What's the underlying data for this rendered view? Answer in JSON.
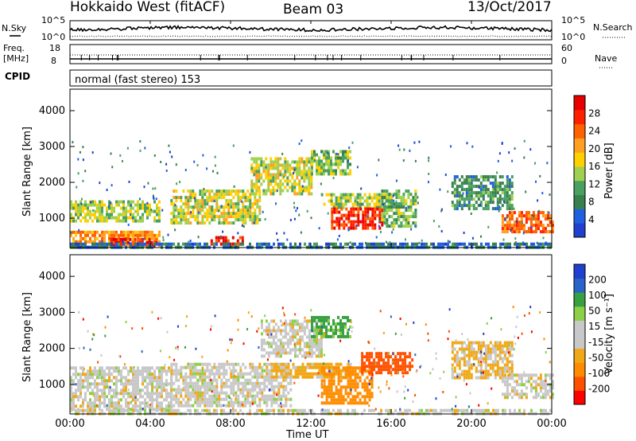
{
  "header": {
    "station": "Hokkaido West (fitACF)",
    "beam": "Beam 03",
    "date": "13/Oct/2017"
  },
  "top_panels": {
    "nsky_label": "N.Sky",
    "nsky_ticks": [
      "10^5",
      "10^0"
    ],
    "nsearch_label": "N.Search",
    "nsearch_ticks": [
      "10^5",
      "10^0"
    ],
    "freq_label": "Freq.",
    "freq_unit": "[MHz]",
    "freq_ticks": [
      "18",
      "8"
    ],
    "nave_label": "Nave",
    "nave_ticks": [
      "60",
      "0"
    ],
    "cpid_label": "CPID",
    "cpid_value": "normal (fast stereo) 153"
  },
  "colors": {
    "power": [
      "#2040d0",
      "#2060e0",
      "#3a7f50",
      "#49a060",
      "#a0d050",
      "#ffd000",
      "#ffa020",
      "#ff6000",
      "#ff2000",
      "#e80000"
    ],
    "velocity": [
      "#ff0000",
      "#ff5000",
      "#ff8c00",
      "#f0a818",
      "#c8c8c8",
      "#c8c8c8",
      "#8cd048",
      "#38a040",
      "#2a64c8",
      "#2040d0"
    ],
    "ground": "#a0a0a0"
  },
  "chart_data": [
    {
      "type": "heatmap",
      "panel": "power",
      "ylabel": "Slant Range [km]",
      "yticks": [
        "1000",
        "2000",
        "3000",
        "4000"
      ],
      "ylim": [
        180,
        4600
      ],
      "xlim": [
        0,
        24
      ],
      "colorbar_label": "Power [dB]",
      "colorbar_ticks": [
        "4",
        "8",
        "12",
        "16",
        "20",
        "24",
        "28"
      ],
      "colorbar_range": [
        0,
        30
      ],
      "bands": [
        {
          "t0": 0.0,
          "t1": 4.5,
          "r0": 900,
          "r1": 1500,
          "level": 14
        },
        {
          "t0": 0.0,
          "t1": 4.5,
          "r0": 250,
          "r1": 650,
          "level": 20
        },
        {
          "t0": 2.0,
          "t1": 4.3,
          "r0": 250,
          "r1": 450,
          "level": 27
        },
        {
          "t0": 5.0,
          "t1": 9.5,
          "r0": 900,
          "r1": 1800,
          "level": 15
        },
        {
          "t0": 7.0,
          "t1": 8.6,
          "r0": 250,
          "r1": 500,
          "level": 27
        },
        {
          "t0": 9.0,
          "t1": 12.0,
          "r0": 1700,
          "r1": 2700,
          "level": 15
        },
        {
          "t0": 12.0,
          "t1": 14.0,
          "r0": 2200,
          "r1": 2900,
          "level": 12
        },
        {
          "t0": 12.5,
          "t1": 16.0,
          "r0": 1300,
          "r1": 1700,
          "level": 14
        },
        {
          "t0": 13.0,
          "t1": 15.5,
          "r0": 700,
          "r1": 1300,
          "level": 26
        },
        {
          "t0": 15.5,
          "t1": 17.2,
          "r0": 800,
          "r1": 1800,
          "level": 12
        },
        {
          "t0": 19.0,
          "t1": 22.0,
          "r0": 1300,
          "r1": 2200,
          "level": 9
        },
        {
          "t0": 21.5,
          "t1": 24.0,
          "r0": 600,
          "r1": 1200,
          "level": 22
        },
        {
          "t0": 0.0,
          "t1": 24.0,
          "r0": 200,
          "r1": 320,
          "level": 6
        }
      ]
    },
    {
      "type": "heatmap",
      "panel": "velocity",
      "ylabel": "Slant Range [km]",
      "yticks": [
        "1000",
        "2000",
        "3000",
        "4000"
      ],
      "ylim": [
        180,
        4600
      ],
      "xlim": [
        0,
        24
      ],
      "xlabel": "Time UT",
      "xticks": [
        "00:00",
        "04:00",
        "08:00",
        "12:00",
        "16:00",
        "20:00",
        "00:00"
      ],
      "colorbar_label": "Velocity [m s⁻¹]",
      "colorbar_ticks": [
        "-200",
        "-100",
        "-50",
        "-15",
        "15",
        "50",
        "100",
        "200"
      ],
      "colorbar_range": [
        -250,
        250
      ],
      "bands": [
        {
          "t0": 0.0,
          "t1": 5.0,
          "r0": 300,
          "r1": 1500,
          "vel": 0
        },
        {
          "t0": 5.0,
          "t1": 11.0,
          "r0": 400,
          "r1": 1600,
          "vel": 0
        },
        {
          "t0": 9.5,
          "t1": 12.5,
          "r0": 1800,
          "r1": 2800,
          "vel": 0
        },
        {
          "t0": 10.0,
          "t1": 14.0,
          "r0": 1200,
          "r1": 1600,
          "vel": -30
        },
        {
          "t0": 12.5,
          "t1": 15.0,
          "r0": 500,
          "r1": 1500,
          "vel": -70
        },
        {
          "t0": 14.5,
          "t1": 17.0,
          "r0": 1300,
          "r1": 1900,
          "vel": -150
        },
        {
          "t0": 12.0,
          "t1": 14.0,
          "r0": 2300,
          "r1": 2900,
          "vel": 60
        },
        {
          "t0": 19.0,
          "t1": 22.0,
          "r0": 1200,
          "r1": 2200,
          "vel": -20
        },
        {
          "t0": 21.5,
          "t1": 24.0,
          "r0": 600,
          "r1": 1300,
          "vel": 0
        },
        {
          "t0": 0.0,
          "t1": 24.0,
          "r0": 200,
          "r1": 320,
          "vel": 0
        }
      ]
    }
  ]
}
